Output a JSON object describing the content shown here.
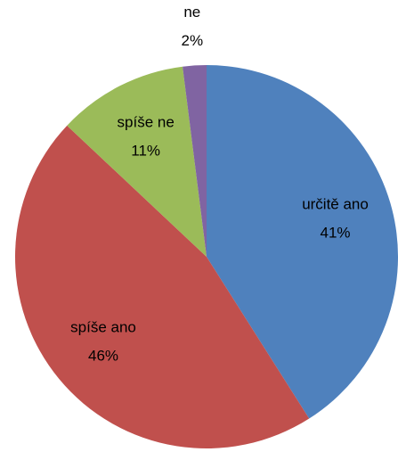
{
  "chart_data": {
    "type": "pie",
    "categories": [
      "určitě ano",
      "spíše ano",
      "spíše ne",
      "ne"
    ],
    "values": [
      41,
      46,
      11,
      2
    ],
    "value_labels": [
      "41%",
      "46%",
      "11%",
      "2%"
    ],
    "colors": [
      "#4f81bd",
      "#c0504d",
      "#9bbb59",
      "#8064a2"
    ]
  }
}
